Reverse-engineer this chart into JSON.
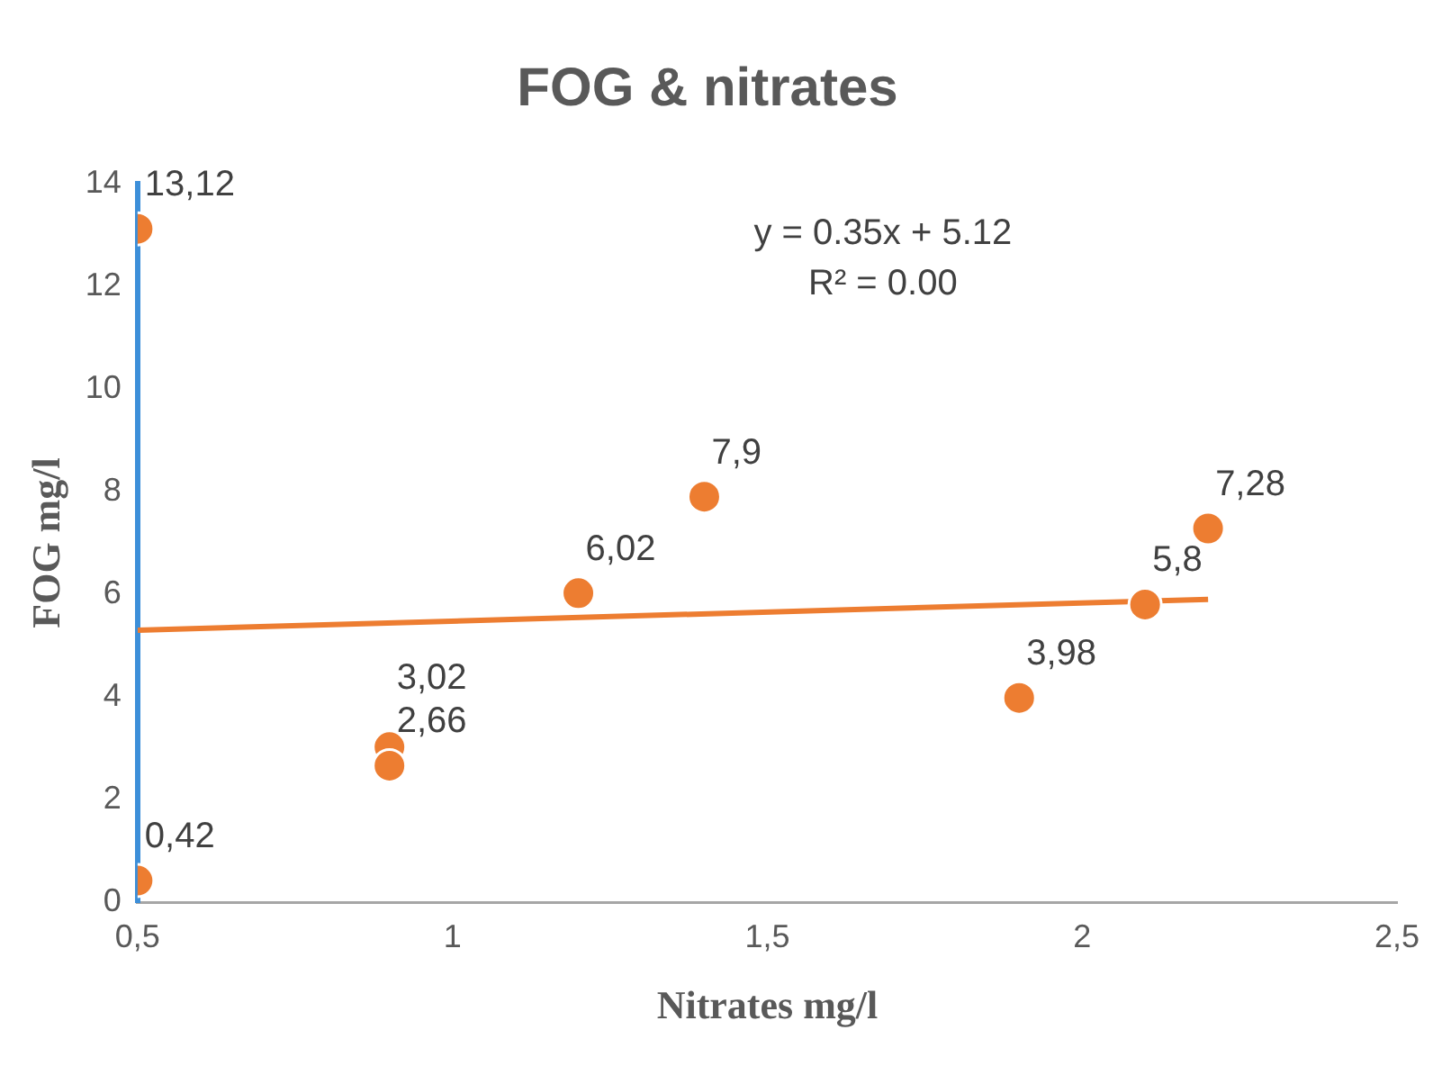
{
  "chart_data": {
    "type": "scatter",
    "title": "FOG & nitrates",
    "xlabel": "Nitrates mg/l",
    "ylabel": "FOG mg/l",
    "xlim": [
      0.5,
      2.5
    ],
    "xticks": [
      {
        "value": 0.5,
        "label": "0,5"
      },
      1,
      {
        "value": 1.5,
        "label": "1,5"
      },
      2,
      {
        "value": 2.5,
        "label": "2,5"
      }
    ],
    "ylim": [
      0,
      14
    ],
    "yticks": [
      0,
      2,
      4,
      6,
      8,
      10,
      12,
      14
    ],
    "grid": false,
    "legend": false,
    "marker": "circle",
    "annotations": [
      "y = 0.35x + 5.12",
      "R² = 0.00"
    ],
    "series": [
      {
        "color": "#ed7d31",
        "x": [
          0.5,
          0.5,
          0.9,
          0.9,
          1.2,
          1.4,
          1.9,
          2.1,
          2.2
        ],
        "values": [
          13.12,
          0.42,
          3.02,
          2.66,
          6.02,
          7.9,
          3.98,
          5.8,
          7.28
        ],
        "value_labels": [
          "13,12",
          "0,42",
          "3,02",
          "2,66",
          "6,02",
          "7,9",
          "3,98",
          "5,8",
          "7,28"
        ]
      },
      {
        "type": "line",
        "color": "#ed7d31",
        "x": [
          0.5,
          2.2
        ],
        "values": [
          5.3,
          5.9
        ],
        "marker": "none",
        "line_style": "solid"
      }
    ]
  }
}
